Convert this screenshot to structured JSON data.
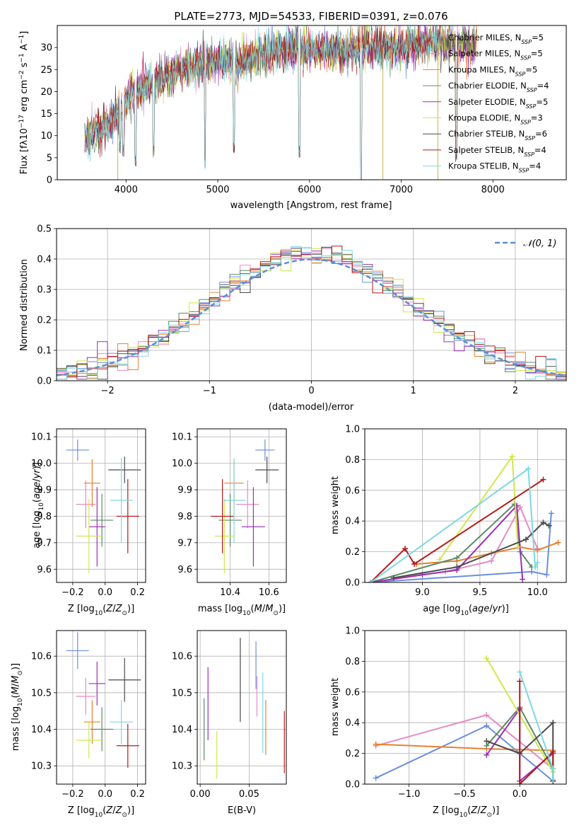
{
  "title": "PLATE=2773, MJD=54533, FIBERID=0391, z=0.076",
  "models": [
    {
      "label": "Chabrier MILES, N",
      "n": "5",
      "color": "#6b8fdc"
    },
    {
      "label": "Salpeter MILES, N",
      "n": "5",
      "color": "#e78ac3"
    },
    {
      "label": "Kroupa MILES, N",
      "n": "5",
      "color": "#e8802c"
    },
    {
      "label": "Chabrier ELODIE, N",
      "n": "4",
      "color": "#5e8a64"
    },
    {
      "label": "Salpeter ELODIE, N",
      "n": "5",
      "color": "#9b2fb3"
    },
    {
      "label": "Kroupa ELODIE, N",
      "n": "3",
      "color": "#cfe84a"
    },
    {
      "label": "Chabrier STELIB, N",
      "n": "6",
      "color": "#4a4a4a"
    },
    {
      "label": "Salpeter STELIB, N",
      "n": "4",
      "color": "#b31a1a"
    },
    {
      "label": "Kroupa STELIB, N",
      "n": "4",
      "color": "#7dd8e0"
    }
  ],
  "legend_sub": "SSP",
  "chart_data": [
    {
      "type": "line",
      "id": "spectrum",
      "xlabel": "wavelength [Angstrom, rest frame]",
      "ylabel": "Flux [f",
      "xlim": [
        3250,
        8800
      ],
      "ylim": [
        0,
        35
      ],
      "xticks": [
        4000,
        5000,
        6000,
        7000,
        8000
      ],
      "yticks": [
        0,
        5,
        10,
        15,
        20,
        25,
        30
      ],
      "continuum": [
        [
          3550,
          9
        ],
        [
          3650,
          11
        ],
        [
          3750,
          12
        ],
        [
          3850,
          13
        ],
        [
          3950,
          16
        ],
        [
          4050,
          19
        ],
        [
          4200,
          21
        ],
        [
          4400,
          23
        ],
        [
          4600,
          25
        ],
        [
          4800,
          26
        ],
        [
          5000,
          27
        ],
        [
          5200,
          26.5
        ],
        [
          5400,
          28
        ],
        [
          5600,
          29
        ],
        [
          5800,
          29.5
        ],
        [
          6000,
          29.5
        ],
        [
          6200,
          29
        ],
        [
          6400,
          29.5
        ],
        [
          6600,
          30
        ],
        [
          6800,
          30
        ],
        [
          7000,
          30
        ],
        [
          7200,
          30.5
        ],
        [
          7400,
          31
        ],
        [
          7600,
          31
        ],
        [
          7800,
          30.5
        ]
      ],
      "absorption": [
        [
          3933,
          6
        ],
        [
          3968,
          5
        ],
        [
          4102,
          3
        ],
        [
          4300,
          5
        ],
        [
          4861,
          2.5
        ],
        [
          5175,
          6
        ],
        [
          5890,
          5
        ],
        [
          6563,
          -3
        ],
        [
          7600,
          4
        ]
      ],
      "spikes": [
        [
          3910,
          0
        ],
        [
          6800,
          0
        ],
        [
          7400,
          0
        ],
        [
          6563,
          35
        ],
        [
          6610,
          35
        ]
      ]
    },
    {
      "type": "histogram",
      "id": "residuals",
      "xlabel": "(data-model)/error",
      "ylabel": "Normed distribution",
      "xlim": [
        -2.5,
        2.5
      ],
      "ylim": [
        0,
        0.5
      ],
      "xticks": [
        -2,
        -1,
        0,
        1,
        2
      ],
      "yticks": [
        0,
        0.1,
        0.2,
        0.3,
        0.4,
        0.5
      ],
      "bin_width": 0.1,
      "reference": "N(0,1)",
      "legend_label": "𝒩(0, 1)"
    },
    {
      "type": "errorbar",
      "id": "age-vs-Z",
      "xlabel": "Z [log",
      "ylabel": "age  [log",
      "xlim": [
        -0.3,
        0.25
      ],
      "ylim": [
        9.55,
        10.13
      ],
      "xticks": [
        -0.2,
        0.0,
        0.2
      ],
      "yticks": [
        9.6,
        9.7,
        9.8,
        9.9,
        10.0,
        10.1
      ],
      "points": [
        {
          "x": -0.17,
          "xerr": 0.07,
          "y": 10.05,
          "yerr": 0.04
        },
        {
          "x": -0.12,
          "xerr": 0.06,
          "y": 9.845,
          "yerr": 0.09
        },
        {
          "x": -0.08,
          "xerr": 0.05,
          "y": 9.925,
          "yerr": 0.09
        },
        {
          "x": -0.02,
          "xerr": 0.07,
          "y": 9.785,
          "yerr": 0.1
        },
        {
          "x": -0.05,
          "xerr": 0.05,
          "y": 9.76,
          "yerr": 0.15
        },
        {
          "x": -0.1,
          "xerr": 0.08,
          "y": 9.725,
          "yerr": 0.14
        },
        {
          "x": 0.12,
          "xerr": 0.1,
          "y": 9.975,
          "yerr": 0.05
        },
        {
          "x": 0.14,
          "xerr": 0.07,
          "y": 9.8,
          "yerr": 0.14
        },
        {
          "x": 0.1,
          "xerr": 0.07,
          "y": 9.86,
          "yerr": 0.16
        }
      ]
    },
    {
      "type": "errorbar",
      "id": "age-vs-mass",
      "xlabel": "mass [log",
      "ylabel": "",
      "xlim": [
        10.23,
        10.69
      ],
      "ylim": [
        9.55,
        10.13
      ],
      "xticks": [
        10.4,
        10.6
      ],
      "yticks": [
        9.6,
        9.7,
        9.8,
        9.9,
        10.0,
        10.1
      ],
      "points": [
        {
          "x": 10.58,
          "xerr": 0.05,
          "y": 10.05,
          "yerr": 0.04
        },
        {
          "x": 10.49,
          "xerr": 0.06,
          "y": 9.845,
          "yerr": 0.09
        },
        {
          "x": 10.42,
          "xerr": 0.05,
          "y": 9.925,
          "yerr": 0.09
        },
        {
          "x": 10.4,
          "xerr": 0.06,
          "y": 9.785,
          "yerr": 0.1
        },
        {
          "x": 10.52,
          "xerr": 0.06,
          "y": 9.76,
          "yerr": 0.15
        },
        {
          "x": 10.37,
          "xerr": 0.05,
          "y": 9.725,
          "yerr": 0.14
        },
        {
          "x": 10.59,
          "xerr": 0.06,
          "y": 9.975,
          "yerr": 0.05
        },
        {
          "x": 10.36,
          "xerr": 0.06,
          "y": 9.8,
          "yerr": 0.14
        },
        {
          "x": 10.42,
          "xerr": 0.06,
          "y": 9.86,
          "yerr": 0.16
        }
      ]
    },
    {
      "type": "line",
      "id": "mass-weight-vs-age",
      "xlabel": "age  [log",
      "ylabel": "mass weight",
      "xlim": [
        8.5,
        10.25
      ],
      "ylim": [
        0,
        1
      ],
      "xticks": [
        9.0,
        9.5,
        10.0
      ],
      "yticks": [
        0.0,
        0.2,
        0.4,
        0.6,
        0.8,
        1.0
      ],
      "series": [
        {
          "x": [
            8.55,
            9.95,
            10.08,
            10.12
          ],
          "y": [
            0.0,
            0.07,
            0.05,
            0.45
          ]
        },
        {
          "x": [
            8.55,
            9.2,
            9.6,
            9.85,
            10.0
          ],
          "y": [
            0.0,
            0.07,
            0.14,
            0.49,
            0.22
          ]
        },
        {
          "x": [
            8.95,
            9.3,
            9.6,
            9.85,
            10.0,
            10.18
          ],
          "y": [
            0.12,
            0.14,
            0.19,
            0.23,
            0.21,
            0.26
          ]
        },
        {
          "x": [
            8.55,
            9.3,
            9.8,
            9.85,
            9.95
          ],
          "y": [
            0.0,
            0.16,
            0.51,
            0.2,
            0.1
          ]
        },
        {
          "x": [
            8.55,
            9.0,
            9.3,
            9.82,
            9.87
          ],
          "y": [
            0.0,
            0.05,
            0.08,
            0.5,
            0.02
          ]
        },
        {
          "x": [
            9.15,
            9.78,
            9.83
          ],
          "y": [
            0.15,
            0.82,
            0.23
          ]
        },
        {
          "x": [
            8.75,
            9.3,
            9.9,
            10.05,
            10.1
          ],
          "y": [
            0.03,
            0.1,
            0.28,
            0.39,
            0.37
          ]
        },
        {
          "x": [
            8.55,
            8.85,
            8.93,
            10.05
          ],
          "y": [
            0.0,
            0.22,
            0.12,
            0.67
          ]
        },
        {
          "x": [
            8.55,
            9.92,
            9.98,
            10.0
          ],
          "y": [
            0.0,
            0.74,
            0.1,
            0.13
          ]
        }
      ]
    },
    {
      "type": "errorbar",
      "id": "mass-vs-Z",
      "xlabel": "Z [log",
      "ylabel": "mass [log",
      "xlim": [
        -0.3,
        0.25
      ],
      "ylim": [
        10.25,
        10.67
      ],
      "xticks": [
        -0.2,
        0.0,
        0.2
      ],
      "yticks": [
        10.3,
        10.4,
        10.5,
        10.6
      ],
      "points": [
        {
          "x": -0.17,
          "xerr": 0.07,
          "y": 10.615,
          "yerr": 0.05
        },
        {
          "x": -0.12,
          "xerr": 0.06,
          "y": 10.49,
          "yerr": 0.05
        },
        {
          "x": -0.08,
          "xerr": 0.05,
          "y": 10.42,
          "yerr": 0.06
        },
        {
          "x": -0.02,
          "xerr": 0.07,
          "y": 10.4,
          "yerr": 0.06
        },
        {
          "x": -0.05,
          "xerr": 0.05,
          "y": 10.525,
          "yerr": 0.06
        },
        {
          "x": -0.1,
          "xerr": 0.08,
          "y": 10.37,
          "yerr": 0.05
        },
        {
          "x": 0.12,
          "xerr": 0.1,
          "y": 10.535,
          "yerr": 0.06
        },
        {
          "x": 0.14,
          "xerr": 0.07,
          "y": 10.355,
          "yerr": 0.06
        },
        {
          "x": 0.1,
          "xerr": 0.07,
          "y": 10.42,
          "yerr": 0.06
        }
      ]
    },
    {
      "type": "errorbar",
      "id": "mass-vs-EBV",
      "xlabel": "E(B-V)",
      "ylabel": "",
      "xlim": [
        -0.003,
        0.088
      ],
      "ylim": [
        10.25,
        10.67
      ],
      "xticks": [
        0.0,
        0.05
      ],
      "yticks": [
        10.3,
        10.4,
        10.5,
        10.6
      ],
      "points": [
        {
          "x": 0.057,
          "xerr": 0,
          "y": 10.575,
          "yerr": 0.065
        },
        {
          "x": 0.058,
          "xerr": 0,
          "y": 10.49,
          "yerr": 0.055
        },
        {
          "x": 0.067,
          "xerr": 0,
          "y": 10.405,
          "yerr": 0.075
        },
        {
          "x": 0.004,
          "xerr": 0,
          "y": 10.4,
          "yerr": 0.085
        },
        {
          "x": 0.008,
          "xerr": 0,
          "y": 10.47,
          "yerr": 0.1
        },
        {
          "x": 0.017,
          "xerr": 0,
          "y": 10.33,
          "yerr": 0.065
        },
        {
          "x": 0.041,
          "xerr": 0,
          "y": 10.535,
          "yerr": 0.115
        },
        {
          "x": 0.086,
          "xerr": 0,
          "y": 10.365,
          "yerr": 0.085
        },
        {
          "x": 0.064,
          "xerr": 0,
          "y": 10.445,
          "yerr": 0.11
        }
      ]
    },
    {
      "type": "line",
      "id": "mass-weight-vs-Z",
      "xlabel": "Z [log",
      "ylabel": "mass weight",
      "xlim": [
        -1.4,
        0.42
      ],
      "ylim": [
        0,
        1
      ],
      "xticks": [
        -1.0,
        -0.5,
        0.0
      ],
      "yticks": [
        0.0,
        0.2,
        0.4,
        0.6,
        0.8,
        1.0
      ],
      "series": [
        {
          "x": [
            -1.3,
            -0.3,
            0.3,
            0.3
          ],
          "y": [
            0.04,
            0.38,
            0.02,
            0.1
          ]
        },
        {
          "x": [
            -1.3,
            -0.3,
            0.3
          ],
          "y": [
            0.25,
            0.45,
            0.1
          ]
        },
        {
          "x": [
            -1.3,
            -0.3,
            0.3,
            0.3
          ],
          "y": [
            0.26,
            0.23,
            0.22,
            0.1
          ]
        },
        {
          "x": [
            -0.3,
            0.0,
            0.3
          ],
          "y": [
            0.25,
            0.5,
            0.1
          ]
        },
        {
          "x": [
            -0.3,
            0.0,
            0.0,
            0.3
          ],
          "y": [
            0.19,
            0.49,
            0.02,
            0.2
          ]
        },
        {
          "x": [
            -0.3,
            0.3,
            0.3
          ],
          "y": [
            0.82,
            0.08,
            0.08
          ]
        },
        {
          "x": [
            -0.3,
            0.0,
            0.3,
            0.3
          ],
          "y": [
            0.28,
            0.2,
            0.4,
            0.02
          ]
        },
        {
          "x": [
            0.0,
            0.0,
            0.3,
            0.3
          ],
          "y": [
            0.67,
            0.0,
            0.21,
            0.1
          ]
        },
        {
          "x": [
            0.0,
            0.3,
            0.3
          ],
          "y": [
            0.73,
            0.1,
            0.03
          ]
        }
      ]
    }
  ]
}
